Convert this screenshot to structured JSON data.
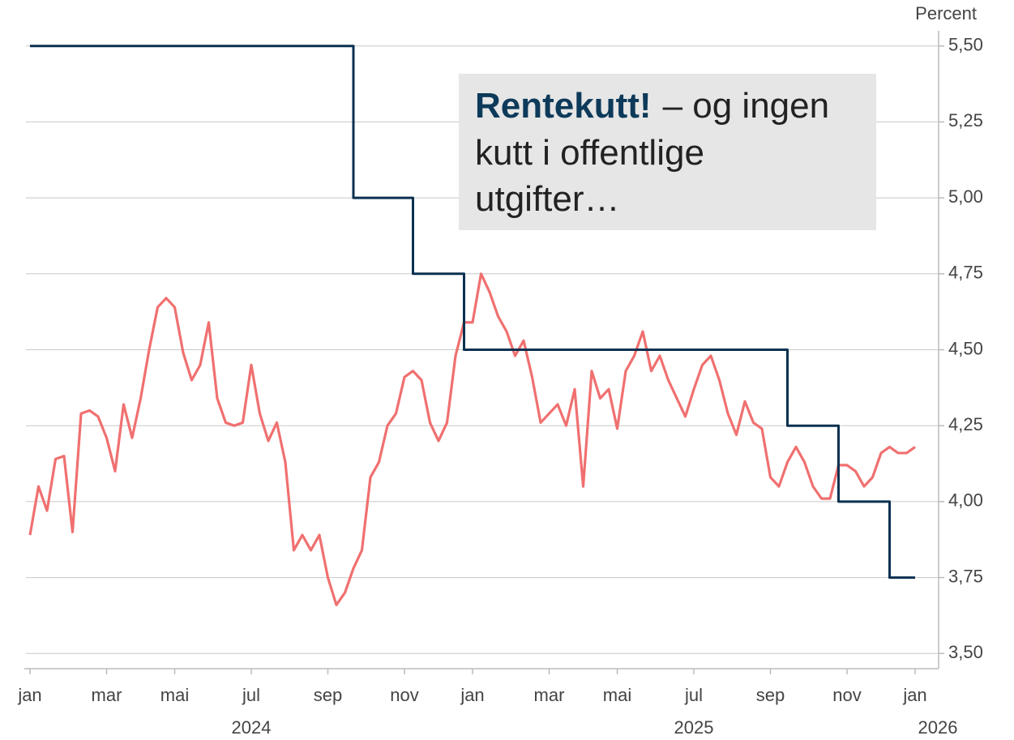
{
  "chart_data": {
    "type": "line",
    "y_axis_label": "Percent",
    "annotation": {
      "highlight": "Rentekutt!",
      "lines": [
        "– og ingen",
        "kutt i offentlige",
        "utgifter…"
      ]
    },
    "categories": [
      "jan",
      null,
      null,
      null,
      null,
      null,
      null,
      null,
      null,
      "mar",
      null,
      null,
      null,
      null,
      null,
      null,
      null,
      "mai",
      null,
      null,
      null,
      null,
      null,
      null,
      null,
      null,
      "jul",
      null,
      null,
      null,
      null,
      null,
      null,
      null,
      null,
      "sep",
      null,
      null,
      null,
      null,
      null,
      null,
      null,
      null,
      "nov",
      null,
      null,
      null,
      null,
      null,
      null,
      null,
      "jan",
      null,
      null,
      null,
      null,
      null,
      null,
      null,
      null,
      "mar",
      null,
      null,
      null,
      null,
      null,
      null,
      null,
      "mai",
      null,
      null,
      null,
      null,
      null,
      null,
      null,
      null,
      "jul",
      null,
      null,
      null,
      null,
      null,
      null,
      null,
      null,
      "sep",
      null,
      null,
      null,
      null,
      null,
      null,
      null,
      null,
      "nov",
      null,
      null,
      null,
      null,
      null,
      null,
      null,
      "jan"
    ],
    "year_labels": [
      "2024",
      "2025",
      "2026"
    ],
    "series": [
      {
        "color": "#0b3150",
        "step": true,
        "values": [
          5.5,
          5.5,
          5.5,
          5.5,
          5.5,
          5.5,
          5.5,
          5.5,
          5.5,
          5.5,
          5.5,
          5.5,
          5.5,
          5.5,
          5.5,
          5.5,
          5.5,
          5.5,
          5.5,
          5.5,
          5.5,
          5.5,
          5.5,
          5.5,
          5.5,
          5.5,
          5.5,
          5.5,
          5.5,
          5.5,
          5.5,
          5.5,
          5.5,
          5.5,
          5.5,
          5.5,
          5.5,
          5.5,
          5.0,
          5.0,
          5.0,
          5.0,
          5.0,
          5.0,
          5.0,
          4.75,
          4.75,
          4.75,
          4.75,
          4.75,
          4.75,
          4.5,
          4.5,
          4.5,
          4.5,
          4.5,
          4.5,
          4.5,
          4.5,
          4.5,
          4.5,
          4.5,
          4.5,
          4.5,
          4.5,
          4.5,
          4.5,
          4.5,
          4.5,
          4.5,
          4.5,
          4.5,
          4.5,
          4.5,
          4.5,
          4.5,
          4.5,
          4.5,
          4.5,
          4.5,
          4.5,
          4.5,
          4.5,
          4.5,
          4.5,
          4.5,
          4.5,
          4.5,
          4.5,
          4.25,
          4.25,
          4.25,
          4.25,
          4.25,
          4.25,
          4.0,
          4.0,
          4.0,
          4.0,
          4.0,
          4.0,
          3.75,
          3.75,
          3.75,
          3.75
        ]
      },
      {
        "color": "#f07070",
        "step": false,
        "values": [
          3.89,
          4.05,
          3.97,
          4.14,
          4.15,
          3.9,
          4.29,
          4.3,
          4.28,
          4.21,
          4.1,
          4.32,
          4.21,
          4.34,
          4.5,
          4.64,
          4.67,
          4.64,
          4.49,
          4.4,
          4.45,
          4.59,
          4.34,
          4.26,
          4.25,
          4.26,
          4.45,
          4.29,
          4.2,
          4.26,
          4.13,
          3.84,
          3.89,
          3.84,
          3.89,
          3.75,
          3.66,
          3.7,
          3.78,
          3.84,
          4.08,
          4.13,
          4.25,
          4.29,
          4.41,
          4.43,
          4.4,
          4.26,
          4.2,
          4.26,
          4.48,
          4.59,
          4.59,
          4.75,
          4.69,
          4.61,
          4.56,
          4.48,
          4.53,
          4.41,
          4.26,
          4.29,
          4.32,
          4.25,
          4.37,
          4.05,
          4.43,
          4.34,
          4.37,
          4.24,
          4.43,
          4.48,
          4.56,
          4.43,
          4.48,
          4.4,
          4.34,
          4.28,
          4.37,
          4.45,
          4.48,
          4.4,
          4.29,
          4.22,
          4.33,
          4.26,
          4.24,
          4.08,
          4.05,
          4.13,
          4.18,
          4.13,
          4.05,
          4.01,
          4.01,
          4.12,
          4.12,
          4.1,
          4.05,
          4.08,
          4.16,
          4.18,
          4.16,
          4.16,
          4.18
        ]
      }
    ],
    "ylim": [
      3.45,
      5.55
    ],
    "yticks": [
      {
        "value": 3.5,
        "label": "3,50"
      },
      {
        "value": 3.75,
        "label": "3,75"
      },
      {
        "value": 4.0,
        "label": "4,00"
      },
      {
        "value": 4.25,
        "label": "4,25"
      },
      {
        "value": 4.5,
        "label": "4,50"
      },
      {
        "value": 4.75,
        "label": "4,75"
      },
      {
        "value": 5.0,
        "label": "5,00"
      },
      {
        "value": 5.25,
        "label": "5,25"
      },
      {
        "value": 5.5,
        "label": "5,50"
      }
    ],
    "grid": true
  }
}
